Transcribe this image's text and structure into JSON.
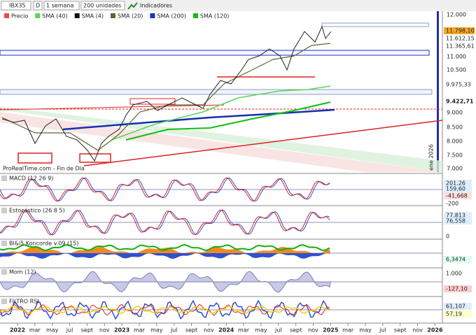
{
  "toolbar": {
    "symbol": "IBX35",
    "d": "D",
    "period": "1 semana",
    "units": "200 unidades",
    "indicators": "Indicadores"
  },
  "legend": [
    {
      "name": "Precio",
      "color": "#e05050"
    },
    {
      "name": "SMA (40)",
      "color": "#5ad65a"
    },
    {
      "name": "SMA (4)",
      "color": "#111111"
    },
    {
      "name": "SMA (20)",
      "color": "#556b2f"
    },
    {
      "name": "SMA (200)",
      "color": "#2030c0"
    },
    {
      "name": "SMA (120)",
      "color": "#10c010"
    }
  ],
  "main": {
    "watermark": "ProRealTime.com - Fin de Día",
    "date_marker": "ene 2026",
    "axis": [
      "12.000",
      "11.000",
      "10.500",
      "9.000",
      "8.500",
      "8.000",
      "7.500",
      "7.000"
    ],
    "tags": [
      "11.798,10",
      "11.612,15",
      "11.365,61",
      "9.975,33",
      "9.422,71"
    ]
  },
  "panels": [
    {
      "title": "MACD (12 26 9)",
      "labels": [
        "201,26",
        "159,60",
        "-41,668",
        "-200"
      ]
    },
    {
      "title": "Estocástico (26 8 5)",
      "labels": [
        "77,813",
        "76,558",
        "0"
      ]
    },
    {
      "title": "Bl&i5 Koncorde v.09 (15)",
      "labels": [
        "6,3474"
      ]
    },
    {
      "title": "Mom (12)",
      "labels": [
        "1.000",
        "-127,10"
      ]
    },
    {
      "title": "FILTRO RSI",
      "labels": [
        "61,107",
        "57,19"
      ]
    }
  ],
  "xaxis": [
    "2022",
    "mar",
    "may",
    "jul",
    "sept",
    "nov",
    "2023",
    "mar",
    "may",
    "jul",
    "sept",
    "nov",
    "2024",
    "mar",
    "may",
    "jul",
    "sept",
    "nov",
    "2025",
    "mar",
    "may",
    "jul",
    "sept",
    "nov",
    "2026"
  ]
}
